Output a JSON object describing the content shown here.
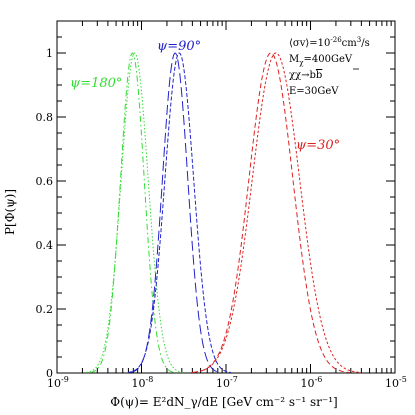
{
  "chart_data": {
    "type": "line",
    "title": "",
    "xlabel": "Φ(ψ)= E²dN_γ/dE [GeV cm⁻² s⁻¹ sr⁻¹]",
    "ylabel": "P[Φ(ψ)]",
    "x_scale": "log",
    "xlim": [
      1e-09,
      1e-05
    ],
    "ylim": [
      0,
      1.1
    ],
    "x_ticks": [
      {
        "value": 1e-09,
        "mantissa": "10",
        "exp": "-9"
      },
      {
        "value": 1e-08,
        "mantissa": "10",
        "exp": "-8"
      },
      {
        "value": 1e-07,
        "mantissa": "10",
        "exp": "-7"
      },
      {
        "value": 1e-06,
        "mantissa": "10",
        "exp": "-6"
      },
      {
        "value": 1e-05,
        "mantissa": "10",
        "exp": "-5"
      }
    ],
    "y_ticks": [
      {
        "value": 0,
        "label": "0"
      },
      {
        "value": 0.2,
        "label": "0.2"
      },
      {
        "value": 0.4,
        "label": "0.4"
      },
      {
        "value": 0.6,
        "label": "0.6"
      },
      {
        "value": 0.8,
        "label": "0.8"
      },
      {
        "value": 1.0,
        "label": "1"
      }
    ],
    "grid": false,
    "series": [
      {
        "name": "ψ=180°",
        "color": "#33dd33",
        "dash": "6,3,1.5,3",
        "peak_x": 7.8e-09,
        "sigma_log10": 0.14,
        "peak_y": 1.0
      },
      {
        "name": "ψ=180°",
        "color": "#33dd33",
        "dash": "1.5,2",
        "peak_x": 8.3e-09,
        "sigma_log10": 0.16,
        "peak_y": 1.0
      },
      {
        "name": "ψ=90°",
        "color": "#2222cc",
        "dash": "10,4",
        "peak_x": 2.5e-08,
        "sigma_log10": 0.15,
        "peak_y": 1.0
      },
      {
        "name": "ψ=90°",
        "color": "#2222cc",
        "dash": "4,2",
        "peak_x": 2.8e-08,
        "sigma_log10": 0.17,
        "peak_y": 1.0
      },
      {
        "name": "ψ=30°",
        "color": "#dd2222",
        "dash": "5,3",
        "peak_x": 3.4e-07,
        "sigma_log10": 0.26,
        "peak_y": 1.0
      },
      {
        "name": "ψ=30°",
        "color": "#dd2222",
        "dash": "2.5,2",
        "peak_x": 3.9e-07,
        "sigma_log10": 0.28,
        "peak_y": 1.0
      }
    ],
    "labels": [
      {
        "text": "ψ=180°",
        "color": "#33dd33"
      },
      {
        "text": "ψ=90°",
        "color": "#2222cc"
      },
      {
        "text": "ψ=30°",
        "color": "#dd2222"
      }
    ],
    "annotations": {
      "sigma_v": {
        "main": "⟨σv⟩=10",
        "exp": "-26",
        "unit": "cm",
        "unit_exp": "3",
        "tail": "/s"
      },
      "mass": {
        "main": "M",
        "sub": "χ",
        "tail": "=400GeV"
      },
      "channel": {
        "main": "χχ→b",
        "bar": "b"
      },
      "energy": {
        "main": "E=30GeV"
      }
    }
  }
}
